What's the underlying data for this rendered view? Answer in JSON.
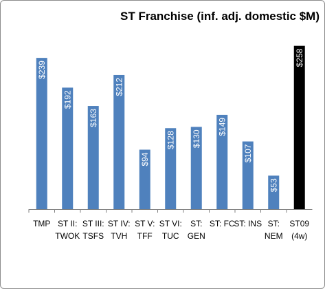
{
  "chart_data": {
    "type": "bar",
    "title": "ST Franchise (inf. adj. domestic $M)",
    "categories": [
      [
        "TMP"
      ],
      [
        "ST II:",
        "TWOK"
      ],
      [
        "ST III:",
        "TSFS"
      ],
      [
        "ST IV:",
        "TVH"
      ],
      [
        "ST V:",
        "TFF"
      ],
      [
        "ST VI:",
        "TUC"
      ],
      [
        "ST:",
        "GEN"
      ],
      [
        "ST: FC"
      ],
      [
        "ST: INS"
      ],
      [
        "ST:",
        "NEM"
      ],
      [
        "ST09",
        "(4w)"
      ]
    ],
    "values": [
      239,
      192,
      163,
      212,
      94,
      128,
      130,
      149,
      107,
      53,
      258
    ],
    "data_labels": [
      "$239",
      "$192",
      "$163",
      "$212",
      "$94",
      "$128",
      "$130",
      "$149",
      "$107",
      "$53",
      "$258"
    ],
    "colors": [
      "#4f81bd",
      "#4f81bd",
      "#4f81bd",
      "#4f81bd",
      "#4f81bd",
      "#4f81bd",
      "#4f81bd",
      "#4f81bd",
      "#4f81bd",
      "#4f81bd",
      "#000000"
    ],
    "ylim": [
      0,
      260
    ],
    "grid": false,
    "legend": "none"
  }
}
